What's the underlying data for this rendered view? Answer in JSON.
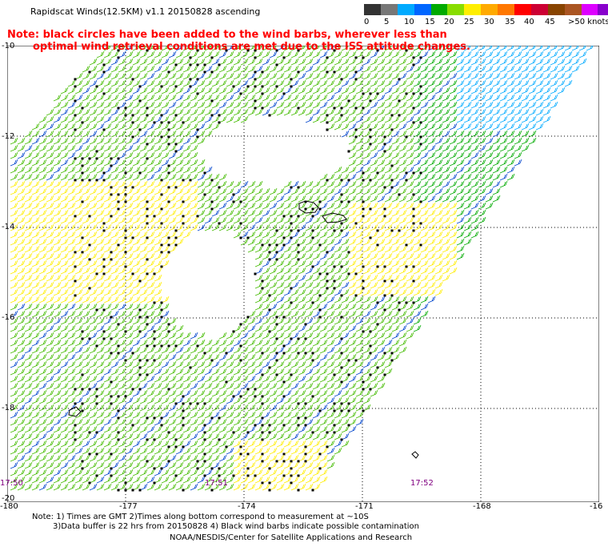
{
  "title": "Rapidscat Winds(12.5KM) v1.1 20150828 ascending",
  "notes": [
    "Note: black circles have been added to the wind barbs, wherever less than",
    "optimal wind retrieval conditions are met due to the ISS attitude changes."
  ],
  "legend": {
    "colors": [
      "#333333",
      "#777777",
      "#00aaff",
      "#0066ff",
      "#00aa00",
      "#88dd00",
      "#ffee00",
      "#ffaa00",
      "#ff7700",
      "#ff0000",
      "#cc0033",
      "#884400",
      "#aa5522",
      "#dd00ff",
      "#8800cc"
    ],
    "labels": [
      "0",
      "5",
      "10",
      "15",
      "20",
      "25",
      "30",
      "35",
      "40",
      "45",
      ">50 knots"
    ]
  },
  "lat_labels": [
    "-10",
    "-12",
    "-14",
    "-16",
    "-18",
    "-20"
  ],
  "lon_labels": [
    "-180",
    "-177",
    "-174",
    "-171",
    "-168",
    "-16"
  ],
  "times": [
    "17:50",
    "17:51",
    "17:52"
  ],
  "footer": {
    "line1": "Note: 1) Times are GMT 2)Times along bottom correspond to measurement at ~10S",
    "line2": "3)Data buffer is 22 hrs from 20150828 4) Black wind barbs indicate possible contamination",
    "line3": "NOAA/NESDIS/Center for Satellite Applications and Research"
  }
}
